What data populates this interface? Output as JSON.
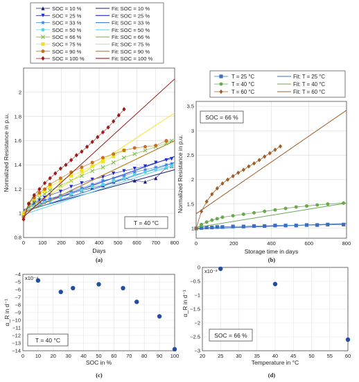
{
  "chart_data": [
    {
      "panel": "(a)",
      "type": "line",
      "xlabel": "Days",
      "ylabel": "Normalized Resistance in p.u.",
      "xlim": [
        0,
        800
      ],
      "ylim": [
        0.8,
        2.2
      ],
      "xticks": [
        0,
        100,
        200,
        300,
        400,
        500,
        600,
        700,
        800
      ],
      "yticks": [
        0.8,
        1,
        1.2,
        1.4,
        1.6,
        1.8,
        2
      ],
      "annotation": "T = 40 °C",
      "grid": true,
      "legend_position": "above",
      "series": [
        {
          "name": "SOC = 10 %",
          "fit_name": "Fit: SOC = 10 %",
          "color": "#1a1a7a",
          "marker": "triangle-up",
          "x": [
            0,
            28,
            56,
            84,
            112,
            140,
            196,
            252,
            308,
            364,
            420,
            476,
            532,
            588,
            644,
            700,
            756,
            784
          ],
          "y": [
            1.0,
            1.06,
            1.08,
            1.1,
            1.11,
            1.12,
            1.14,
            1.16,
            1.19,
            1.21,
            1.23,
            1.26,
            1.29,
            1.27,
            1.26,
            1.29,
            1.38,
            1.39
          ],
          "fit_y": [
            1.02,
            1.36
          ]
        },
        {
          "name": "SOC = 25 %",
          "fit_name": "Fit: SOC = 25 %",
          "color": "#1f2ccf",
          "marker": "triangle-down",
          "x": [
            0,
            28,
            56,
            84,
            112,
            140,
            196,
            252,
            308,
            364,
            420,
            476,
            532,
            588,
            644,
            700,
            756,
            784
          ],
          "y": [
            1.0,
            1.07,
            1.09,
            1.11,
            1.13,
            1.15,
            1.18,
            1.22,
            1.25,
            1.28,
            1.3,
            1.33,
            1.35,
            1.37,
            1.39,
            1.42,
            1.44,
            1.45
          ],
          "fit_y": [
            1.03,
            1.47
          ]
        },
        {
          "name": "SOC = 33 %",
          "fit_name": "Fit: SOC = 33 %",
          "color": "#3d7fe6",
          "marker": "asterisk",
          "x": [
            0,
            28,
            56,
            84,
            112,
            140,
            196,
            252,
            308,
            364,
            420,
            476,
            532,
            588,
            644,
            700,
            756,
            784
          ],
          "y": [
            1.0,
            1.05,
            1.07,
            1.09,
            1.11,
            1.12,
            1.15,
            1.18,
            1.21,
            1.24,
            1.27,
            1.29,
            1.31,
            1.34,
            1.36,
            1.38,
            1.4,
            1.41
          ],
          "fit_y": [
            1.01,
            1.42
          ]
        },
        {
          "name": "SOC = 50 %",
          "fit_name": "Fit: SOC = 50 %",
          "color": "#5bd3e8",
          "marker": "dot",
          "x": [
            0,
            28,
            56,
            84,
            112,
            140,
            196,
            252,
            308,
            364,
            420,
            476,
            532,
            588,
            644,
            700,
            756,
            784
          ],
          "y": [
            0.98,
            1.03,
            1.05,
            1.07,
            1.09,
            1.1,
            1.13,
            1.16,
            1.19,
            1.22,
            1.24,
            1.27,
            1.29,
            1.32,
            1.34,
            1.36,
            1.38,
            1.39
          ],
          "fit_y": [
            0.99,
            1.4
          ]
        },
        {
          "name": "SOC = 66 %",
          "fit_name": "Fit: SOC = 66 %",
          "color": "#7cc043",
          "marker": "cross",
          "x": [
            0,
            28,
            56,
            84,
            112,
            140,
            196,
            252,
            308,
            364,
            420,
            476,
            532,
            588,
            644,
            700,
            756,
            784
          ],
          "y": [
            0.98,
            1.06,
            1.1,
            1.13,
            1.16,
            1.19,
            1.23,
            1.27,
            1.31,
            1.35,
            1.38,
            1.42,
            1.46,
            1.49,
            1.52,
            1.55,
            1.58,
            1.6
          ],
          "fit_y": [
            1.0,
            1.6
          ]
        },
        {
          "name": "SOC = 75 %",
          "fit_name": "Fit: SOC = 75 %",
          "color": "#f2e31d",
          "marker": "square",
          "x": [
            0,
            28,
            56,
            84,
            112,
            140,
            196,
            252,
            308,
            364,
            420,
            476,
            532
          ],
          "y": [
            1.0,
            1.08,
            1.12,
            1.16,
            1.19,
            1.22,
            1.27,
            1.31,
            1.35,
            1.39,
            1.43,
            1.47,
            1.52
          ],
          "fit_y": [
            1.01,
            1.83
          ]
        },
        {
          "name": "SOC = 90 %",
          "fit_name": "Fit: SOC = 90 %",
          "color": "#c8701c",
          "marker": "dot",
          "x": [
            0,
            28,
            56,
            84,
            112,
            140,
            196,
            252,
            308,
            364,
            420,
            476,
            532,
            588,
            644,
            700,
            756
          ],
          "y": [
            0.97,
            1.08,
            1.13,
            1.17,
            1.2,
            1.24,
            1.29,
            1.34,
            1.38,
            1.42,
            1.46,
            1.49,
            1.52,
            1.54,
            1.55,
            1.56,
            1.6
          ],
          "fit_y": [
            1.0,
            1.6
          ]
        },
        {
          "name": "SOC = 100 %",
          "fit_name": "Fit: SOC = 100 %",
          "color": "#9b1b1b",
          "marker": "diamond",
          "x": [
            0,
            28,
            56,
            84,
            112,
            140,
            168,
            196,
            224,
            252,
            280,
            308,
            336,
            364,
            392,
            420,
            448,
            476,
            504,
            532
          ],
          "y": [
            0.95,
            1.08,
            1.15,
            1.2,
            1.25,
            1.29,
            1.33,
            1.37,
            1.4,
            1.44,
            1.48,
            1.51,
            1.55,
            1.59,
            1.63,
            1.67,
            1.71,
            1.76,
            1.81,
            1.86
          ],
          "fit_y": [
            0.97,
            2.11
          ]
        }
      ]
    },
    {
      "panel": "(b)",
      "type": "line",
      "xlabel": "Storage time in days",
      "ylabel": "Normalized Resistance in p.u.",
      "xlim": [
        0,
        800
      ],
      "ylim": [
        0.8,
        3.6
      ],
      "xticks": [
        0,
        200,
        400,
        600,
        800
      ],
      "yticks": [
        1,
        1.5,
        2,
        2.5,
        3,
        3.5
      ],
      "annotation": "SOC = 66 %",
      "grid": true,
      "legend_position": "top",
      "series": [
        {
          "name": "T = 25 °C",
          "fit_name": "Fit:  T = 25 °C",
          "color": "#3a6ec6",
          "marker": "square",
          "x": [
            0,
            28,
            56,
            84,
            112,
            140,
            196,
            252,
            308,
            364,
            420,
            476,
            532,
            588,
            644,
            700,
            784
          ],
          "y": [
            1.0,
            1.01,
            1.02,
            1.02,
            1.03,
            1.03,
            1.04,
            1.04,
            1.05,
            1.05,
            1.06,
            1.06,
            1.06,
            1.07,
            1.07,
            1.08,
            1.08
          ],
          "fit_y": [
            0.99,
            1.1
          ]
        },
        {
          "name": "T = 40 °C",
          "fit_name": "Fit:  T = 40 °C",
          "color": "#6aa84f",
          "marker": "dot",
          "x": [
            0,
            28,
            56,
            84,
            112,
            140,
            196,
            252,
            308,
            364,
            420,
            476,
            532,
            588,
            644,
            700,
            784
          ],
          "y": [
            1.0,
            1.08,
            1.13,
            1.17,
            1.2,
            1.23,
            1.26,
            1.29,
            1.32,
            1.35,
            1.38,
            1.41,
            1.44,
            1.46,
            1.48,
            1.5,
            1.52
          ],
          "fit_y": [
            1.02,
            1.52
          ]
        },
        {
          "name": "T = 60 °C",
          "fit_name": "Fit:  T = 60 °C",
          "color": "#a0602a",
          "marker": "diamond",
          "x": [
            0,
            28,
            56,
            84,
            112,
            140,
            168,
            196,
            224,
            252,
            280,
            308,
            336,
            364,
            392,
            420,
            448
          ],
          "y": [
            1.0,
            1.35,
            1.55,
            1.7,
            1.82,
            1.92,
            2.0,
            2.07,
            2.14,
            2.2,
            2.27,
            2.33,
            2.4,
            2.47,
            2.54,
            2.61,
            2.68
          ],
          "fit_y": [
            1.3,
            3.42
          ]
        }
      ]
    },
    {
      "panel": "(c)",
      "type": "scatter",
      "xlabel": "SOC in %",
      "ylabel": "α_R in d⁻¹",
      "exponent": "x10⁻⁴",
      "xlim": [
        0,
        100
      ],
      "ylim": [
        -14,
        -4
      ],
      "xticks": [
        0,
        10,
        20,
        30,
        40,
        50,
        60,
        70,
        80,
        90,
        100
      ],
      "yticks": [
        -4,
        -5,
        -6,
        -7,
        -8,
        -9,
        -10,
        -11,
        -12,
        -13,
        -14
      ],
      "annotation": "T = 40 °C",
      "grid": true,
      "x": [
        10,
        25,
        33,
        50,
        66,
        75,
        90,
        100
      ],
      "y": [
        -4.8,
        -6.3,
        -5.8,
        -5.3,
        -5.8,
        -7.6,
        -9.5,
        -13.8
      ]
    },
    {
      "panel": "(d)",
      "type": "scatter",
      "xlabel": "Temperature in °C",
      "ylabel": "α_R in d⁻¹",
      "exponent": "x10⁻³",
      "xlim": [
        20,
        60
      ],
      "ylim": [
        -3,
        0
      ],
      "xticks": [
        20,
        25,
        30,
        35,
        40,
        45,
        50,
        55,
        60
      ],
      "yticks": [
        0,
        -0.5,
        -1,
        -1.5,
        -2,
        -2.5,
        -3
      ],
      "annotation": "SOC = 66 %",
      "grid": true,
      "x": [
        25,
        40,
        60
      ],
      "y": [
        -0.05,
        -0.6,
        -2.6
      ]
    }
  ],
  "panel_labels": [
    "(a)",
    "(b)",
    "(c)",
    "(d)"
  ]
}
